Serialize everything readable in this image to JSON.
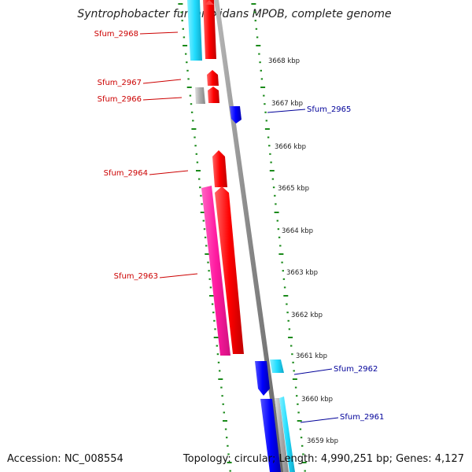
{
  "title": "Syntrophobacter fumaroxidans MPOB, complete genome",
  "footer": {
    "accession": "Accession: NC_008554",
    "summary": "Topology: circular; Length: 4,990,251 bp; Genes: 4,127"
  },
  "colors": {
    "forward_strand": "#ff0000",
    "reverse_strand": "#0000ff",
    "pink": "#ff1aa0",
    "cyan": "#22ddff",
    "gray": "#aaaaaa",
    "backbone": "#888888",
    "tick": "#1a8a1a",
    "label_forward": "#cc0000",
    "label_reverse": "#000099"
  },
  "tick_labels": [
    "3668 kbp",
    "3667 kbp",
    "3666 kbp",
    "3665 kbp",
    "3664 kbp",
    "3663 kbp",
    "3662 kbp",
    "3661 kbp",
    "3660 kbp",
    "3659 kbp"
  ],
  "gene_labels": [
    {
      "text": "Sfum_2968",
      "strand": "forward"
    },
    {
      "text": "Sfum_2967",
      "strand": "forward"
    },
    {
      "text": "Sfum_2966",
      "strand": "forward"
    },
    {
      "text": "Sfum_2965",
      "strand": "reverse"
    },
    {
      "text": "Sfum_2964",
      "strand": "forward"
    },
    {
      "text": "Sfum_2963",
      "strand": "forward"
    },
    {
      "text": "Sfum_2962",
      "strand": "reverse"
    },
    {
      "text": "Sfum_2961",
      "strand": "reverse"
    }
  ]
}
